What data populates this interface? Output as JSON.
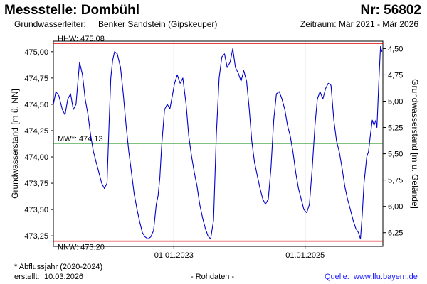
{
  "header": {
    "title": "Messstelle: Dombühl",
    "number": "Nr: 56802",
    "aquifer_label": "Grundwasserleiter:",
    "aquifer_value": "Benker Sandstein (Gipskeuper)",
    "period": "Zeitraum: Mär 2021 - Mär 2026"
  },
  "footer": {
    "footnote": "* Abflussjahr (2020-2024)",
    "created_label": "erstellt:",
    "created_value": "10.03.2026",
    "raw": "- Rohdaten -",
    "source_label": "Quelle:",
    "source_link": "www.lfu.bayern.de"
  },
  "colors": {
    "series": "#0000cc",
    "hhw": "#e00000",
    "nnw": "#e00000",
    "mw": "#008000",
    "axis": "#000000"
  },
  "chart_data": {
    "type": "line",
    "title": "",
    "ylabel": "Grundwasserstand [m ü. NN]",
    "y2label": "Grundwasserstand [m u. Gelände]",
    "ylim": [
      473.15,
      475.1
    ],
    "y2lim": [
      6.38,
      4.43
    ],
    "yticks": [
      473.25,
      473.5,
      473.75,
      474.0,
      474.25,
      474.5,
      474.75,
      475.0
    ],
    "yticklabels": [
      "473,25",
      "473,50",
      "473,75",
      "474,00",
      "474,25",
      "474,50",
      "474,75",
      "475,00"
    ],
    "y2ticks": [
      6.25,
      6.0,
      5.75,
      5.5,
      5.25,
      5.0,
      4.75,
      4.5
    ],
    "y2ticklabels": [
      "6,25",
      "6,00",
      "5,75",
      "5,50",
      "5,25",
      "5,00",
      "4,75",
      "4,50"
    ],
    "xlim": [
      "2021-03-01",
      "2026-03-10"
    ],
    "xticks": [
      "2023-01-01",
      "2025-01-01"
    ],
    "xticklabels": [
      "01.01.2023",
      "01.01.2025"
    ],
    "grid": "x-only",
    "reference_lines": [
      {
        "name": "HHW",
        "value": 475.08,
        "label": "HHW: 475.08"
      },
      {
        "name": "MW",
        "value": 474.13,
        "label": "MW*: 474.13"
      },
      {
        "name": "NNW",
        "value": 473.2,
        "label": "NNW: 473.20"
      }
    ],
    "series": [
      {
        "values": [
          [
            "2021-03-01",
            474.5
          ],
          [
            "2021-03-15",
            474.62
          ],
          [
            "2021-04-01",
            474.58
          ],
          [
            "2021-04-20",
            474.45
          ],
          [
            "2021-05-05",
            474.4
          ],
          [
            "2021-05-20",
            474.55
          ],
          [
            "2021-06-05",
            474.6
          ],
          [
            "2021-06-20",
            474.45
          ],
          [
            "2021-07-05",
            474.5
          ],
          [
            "2021-07-25",
            474.9
          ],
          [
            "2021-08-10",
            474.78
          ],
          [
            "2021-08-25",
            474.55
          ],
          [
            "2021-09-10",
            474.4
          ],
          [
            "2021-09-25",
            474.2
          ],
          [
            "2021-10-10",
            474.05
          ],
          [
            "2021-10-25",
            473.95
          ],
          [
            "2021-11-10",
            473.85
          ],
          [
            "2021-11-25",
            473.75
          ],
          [
            "2021-12-10",
            473.7
          ],
          [
            "2021-12-25",
            473.75
          ],
          [
            "2022-01-05",
            474.3
          ],
          [
            "2022-01-15",
            474.75
          ],
          [
            "2022-01-25",
            474.92
          ],
          [
            "2022-02-05",
            475.0
          ],
          [
            "2022-02-20",
            474.98
          ],
          [
            "2022-03-10",
            474.85
          ],
          [
            "2022-03-25",
            474.6
          ],
          [
            "2022-04-10",
            474.3
          ],
          [
            "2022-04-25",
            474.05
          ],
          [
            "2022-05-10",
            473.85
          ],
          [
            "2022-05-25",
            473.65
          ],
          [
            "2022-06-10",
            473.5
          ],
          [
            "2022-06-25",
            473.38
          ],
          [
            "2022-07-10",
            473.28
          ],
          [
            "2022-07-25",
            473.24
          ],
          [
            "2022-08-10",
            473.22
          ],
          [
            "2022-08-25",
            473.24
          ],
          [
            "2022-09-10",
            473.3
          ],
          [
            "2022-09-25",
            473.55
          ],
          [
            "2022-10-05",
            473.63
          ],
          [
            "2022-10-15",
            473.8
          ],
          [
            "2022-10-25",
            474.1
          ],
          [
            "2022-11-10",
            474.45
          ],
          [
            "2022-11-25",
            474.5
          ],
          [
            "2022-12-10",
            474.46
          ],
          [
            "2022-12-20",
            474.55
          ],
          [
            "2023-01-05",
            474.7
          ],
          [
            "2023-01-20",
            474.78
          ],
          [
            "2023-02-05",
            474.7
          ],
          [
            "2023-02-20",
            474.75
          ],
          [
            "2023-03-10",
            474.5
          ],
          [
            "2023-03-25",
            474.2
          ],
          [
            "2023-04-10",
            474.0
          ],
          [
            "2023-04-25",
            473.85
          ],
          [
            "2023-05-10",
            473.72
          ],
          [
            "2023-05-25",
            473.55
          ],
          [
            "2023-06-10",
            473.42
          ],
          [
            "2023-06-25",
            473.32
          ],
          [
            "2023-07-10",
            473.25
          ],
          [
            "2023-07-25",
            473.22
          ],
          [
            "2023-08-10",
            473.4
          ],
          [
            "2023-08-25",
            474.2
          ],
          [
            "2023-09-10",
            474.75
          ],
          [
            "2023-09-25",
            474.95
          ],
          [
            "2023-10-10",
            474.98
          ],
          [
            "2023-10-25",
            474.85
          ],
          [
            "2023-11-10",
            474.9
          ],
          [
            "2023-11-25",
            475.03
          ],
          [
            "2023-12-10",
            474.85
          ],
          [
            "2023-12-25",
            474.8
          ],
          [
            "2024-01-10",
            474.72
          ],
          [
            "2024-01-25",
            474.82
          ],
          [
            "2024-02-10",
            474.72
          ],
          [
            "2024-02-25",
            474.45
          ],
          [
            "2024-03-10",
            474.15
          ],
          [
            "2024-03-25",
            473.95
          ],
          [
            "2024-04-10",
            473.82
          ],
          [
            "2024-04-25",
            473.7
          ],
          [
            "2024-05-10",
            473.6
          ],
          [
            "2024-05-25",
            473.55
          ],
          [
            "2024-06-10",
            473.6
          ],
          [
            "2024-06-25",
            473.9
          ],
          [
            "2024-07-10",
            474.35
          ],
          [
            "2024-07-25",
            474.6
          ],
          [
            "2024-08-10",
            474.62
          ],
          [
            "2024-08-25",
            474.55
          ],
          [
            "2024-09-10",
            474.45
          ],
          [
            "2024-09-25",
            474.3
          ],
          [
            "2024-10-10",
            474.2
          ],
          [
            "2024-10-25",
            474.05
          ],
          [
            "2024-11-10",
            473.85
          ],
          [
            "2024-11-25",
            473.7
          ],
          [
            "2024-12-10",
            473.6
          ],
          [
            "2024-12-25",
            473.5
          ],
          [
            "2025-01-10",
            473.47
          ],
          [
            "2025-01-25",
            473.55
          ],
          [
            "2025-02-10",
            473.9
          ],
          [
            "2025-02-25",
            474.3
          ],
          [
            "2025-03-10",
            474.55
          ],
          [
            "2025-03-25",
            474.62
          ],
          [
            "2025-04-10",
            474.55
          ],
          [
            "2025-04-25",
            474.65
          ],
          [
            "2025-05-10",
            474.7
          ],
          [
            "2025-05-25",
            474.68
          ],
          [
            "2025-06-10",
            474.35
          ],
          [
            "2025-06-25",
            474.15
          ],
          [
            "2025-07-10",
            474.05
          ],
          [
            "2025-07-25",
            473.9
          ],
          [
            "2025-08-10",
            473.72
          ],
          [
            "2025-08-25",
            473.6
          ],
          [
            "2025-09-10",
            473.5
          ],
          [
            "2025-09-25",
            473.4
          ],
          [
            "2025-10-10",
            473.32
          ],
          [
            "2025-10-25",
            473.28
          ],
          [
            "2025-11-05",
            473.22
          ],
          [
            "2025-11-15",
            473.45
          ],
          [
            "2025-11-25",
            473.75
          ],
          [
            "2025-12-10",
            474.0
          ],
          [
            "2025-12-20",
            474.05
          ],
          [
            "2025-12-30",
            474.2
          ],
          [
            "2026-01-10",
            474.35
          ],
          [
            "2026-01-20",
            474.3
          ],
          [
            "2026-01-30",
            474.35
          ],
          [
            "2026-02-05",
            474.28
          ],
          [
            "2026-02-15",
            474.7
          ],
          [
            "2026-02-25",
            475.05
          ],
          [
            "2026-03-05",
            475.0
          ]
        ]
      }
    ]
  }
}
